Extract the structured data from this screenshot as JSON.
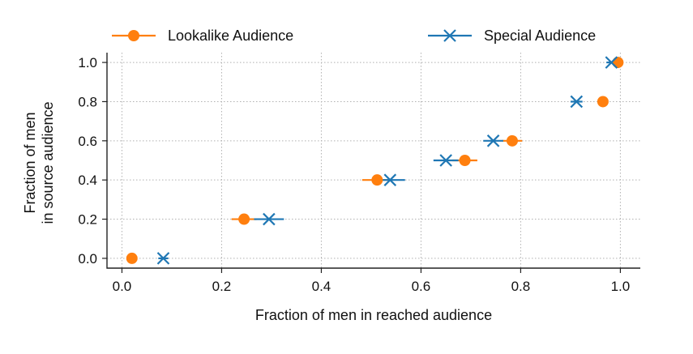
{
  "chart_data": {
    "type": "scatter",
    "title": "",
    "xlabel": "Fraction of men in reached audience",
    "ylabel": [
      "Fraction of men",
      "in source audience"
    ],
    "xlim": [
      -0.03,
      1.04
    ],
    "ylim": [
      -0.05,
      1.05
    ],
    "xticks": [
      0.0,
      0.2,
      0.4,
      0.6,
      0.8,
      1.0
    ],
    "xtick_labels": [
      "0.0",
      "0.2",
      "0.4",
      "0.6",
      "0.8",
      "1.0"
    ],
    "yticks": [
      0.0,
      0.2,
      0.4,
      0.6,
      0.8,
      1.0
    ],
    "ytick_labels": [
      "0.0",
      "0.2",
      "0.4",
      "0.6",
      "0.8",
      "1.0"
    ],
    "grid": true,
    "legend_position": "top",
    "series": [
      {
        "name": "Lookalike Audience",
        "marker": "circle",
        "color": "#ff7f0e",
        "points": [
          {
            "x": 0.02,
            "y": 0.0,
            "err": 0.0
          },
          {
            "x": 0.245,
            "y": 0.2,
            "err": 0.025
          },
          {
            "x": 0.512,
            "y": 0.4,
            "err": 0.03
          },
          {
            "x": 0.688,
            "y": 0.5,
            "err": 0.025
          },
          {
            "x": 0.783,
            "y": 0.6,
            "err": 0.02
          },
          {
            "x": 0.965,
            "y": 0.8,
            "err": 0.0
          },
          {
            "x": 0.995,
            "y": 1.0,
            "err": 0.0
          }
        ]
      },
      {
        "name": "Special Audience",
        "marker": "x",
        "color": "#1f77b4",
        "points": [
          {
            "x": 0.083,
            "y": 0.0,
            "err": 0.01
          },
          {
            "x": 0.295,
            "y": 0.2,
            "err": 0.03
          },
          {
            "x": 0.538,
            "y": 0.4,
            "err": 0.03
          },
          {
            "x": 0.65,
            "y": 0.5,
            "err": 0.025
          },
          {
            "x": 0.745,
            "y": 0.6,
            "err": 0.02
          },
          {
            "x": 0.912,
            "y": 0.8,
            "err": 0.012
          },
          {
            "x": 0.982,
            "y": 1.0,
            "err": 0.01
          }
        ]
      }
    ]
  }
}
